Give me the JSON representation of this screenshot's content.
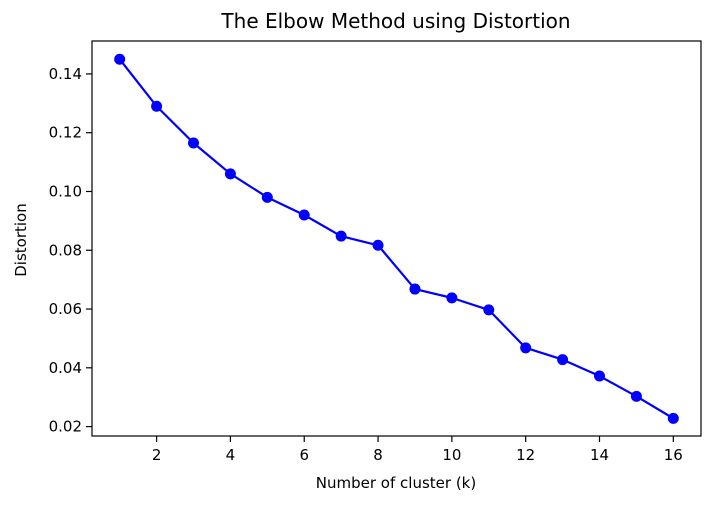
{
  "chart_data": {
    "type": "line",
    "title": "The Elbow Method using Distortion",
    "xlabel": "Number of cluster (k)",
    "ylabel": "Distortion",
    "xlim": [
      0.25,
      16.75
    ],
    "ylim": [
      0.0168,
      0.1512
    ],
    "xticks": [
      2,
      4,
      6,
      8,
      10,
      12,
      14,
      16
    ],
    "xtick_labels": [
      "2",
      "4",
      "6",
      "8",
      "10",
      "12",
      "14",
      "16"
    ],
    "yticks": [
      0.02,
      0.04,
      0.06,
      0.08,
      0.1,
      0.12,
      0.14
    ],
    "ytick_labels": [
      "0.02",
      "0.04",
      "0.06",
      "0.08",
      "0.10",
      "0.12",
      "0.14"
    ],
    "grid": false,
    "color": "#0000ff",
    "marker": "circle",
    "series": [
      {
        "x": [
          1,
          2,
          3,
          4,
          5,
          6,
          7,
          8,
          9,
          10,
          11,
          12,
          13,
          14,
          15,
          16
        ],
        "values": [
          0.145,
          0.129,
          0.1165,
          0.106,
          0.098,
          0.092,
          0.0848,
          0.0817,
          0.0668,
          0.0638,
          0.0597,
          0.0468,
          0.0428,
          0.0372,
          0.0303,
          0.0228
        ]
      }
    ]
  }
}
